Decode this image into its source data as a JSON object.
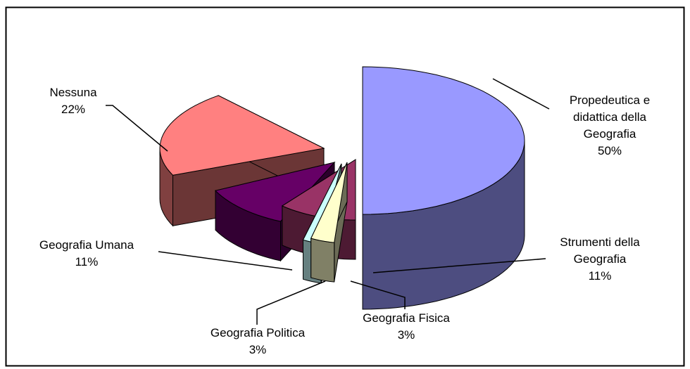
{
  "chart_data": {
    "type": "pie",
    "style": "3d-exploded",
    "slices": [
      {
        "key": "prop",
        "label_lines": [
          "Propedeutica e",
          "didattica della",
          "Geografia"
        ],
        "value_text": "50%",
        "value": 50,
        "color": "#9999FF"
      },
      {
        "key": "strum",
        "label_lines": [
          "Strumenti della",
          "Geografia"
        ],
        "value_text": "11%",
        "value": 11,
        "color": "#993366"
      },
      {
        "key": "fis",
        "label_lines": [
          "Geografia Fisica"
        ],
        "value_text": "3%",
        "value": 3,
        "color": "#FFFFCC"
      },
      {
        "key": "pol",
        "label_lines": [
          "Geografia Politica"
        ],
        "value_text": "3%",
        "value": 3,
        "color": "#CCFFFF"
      },
      {
        "key": "uma",
        "label_lines": [
          "Geografia Umana"
        ],
        "value_text": "11%",
        "value": 11,
        "color": "#660066"
      },
      {
        "key": "ness",
        "label_lines": [
          "Nessuna"
        ],
        "value_text": "22%",
        "value": 22,
        "color": "#FF8080"
      }
    ]
  }
}
